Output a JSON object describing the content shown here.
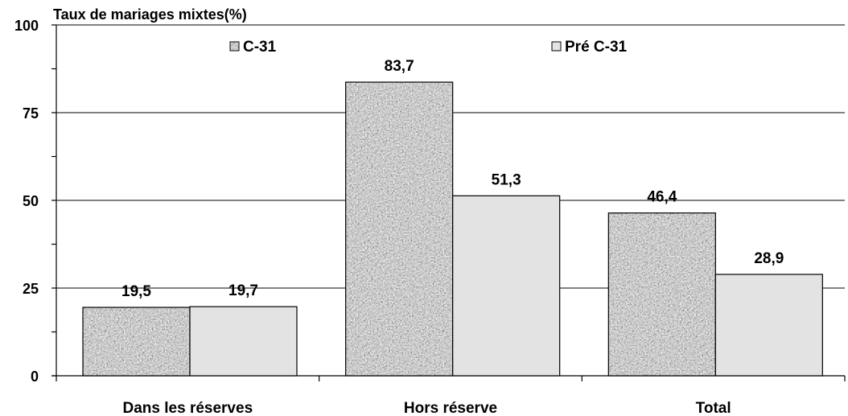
{
  "chart_data": {
    "type": "bar",
    "ylabel": "Taux de mariages mixtes(%)",
    "ylim": [
      0,
      100
    ],
    "yticks": [
      "0",
      "25",
      "50",
      "75",
      "100"
    ],
    "grid": true,
    "legend_position": "top",
    "categories": [
      "Dans les réserves",
      "Hors réserve",
      "Total"
    ],
    "series": [
      {
        "name": "C-31",
        "values": [
          19.5,
          83.7,
          46.4
        ],
        "labels": [
          "19,5",
          "83,7",
          "46,4"
        ],
        "color": "#9a9a9a",
        "pattern": "granite"
      },
      {
        "name": "Pré C-31",
        "values": [
          19.7,
          51.3,
          28.9
        ],
        "labels": [
          "19,7",
          "51,3",
          "28,9"
        ],
        "color": "#e3e3e3",
        "pattern": "solid"
      }
    ]
  }
}
